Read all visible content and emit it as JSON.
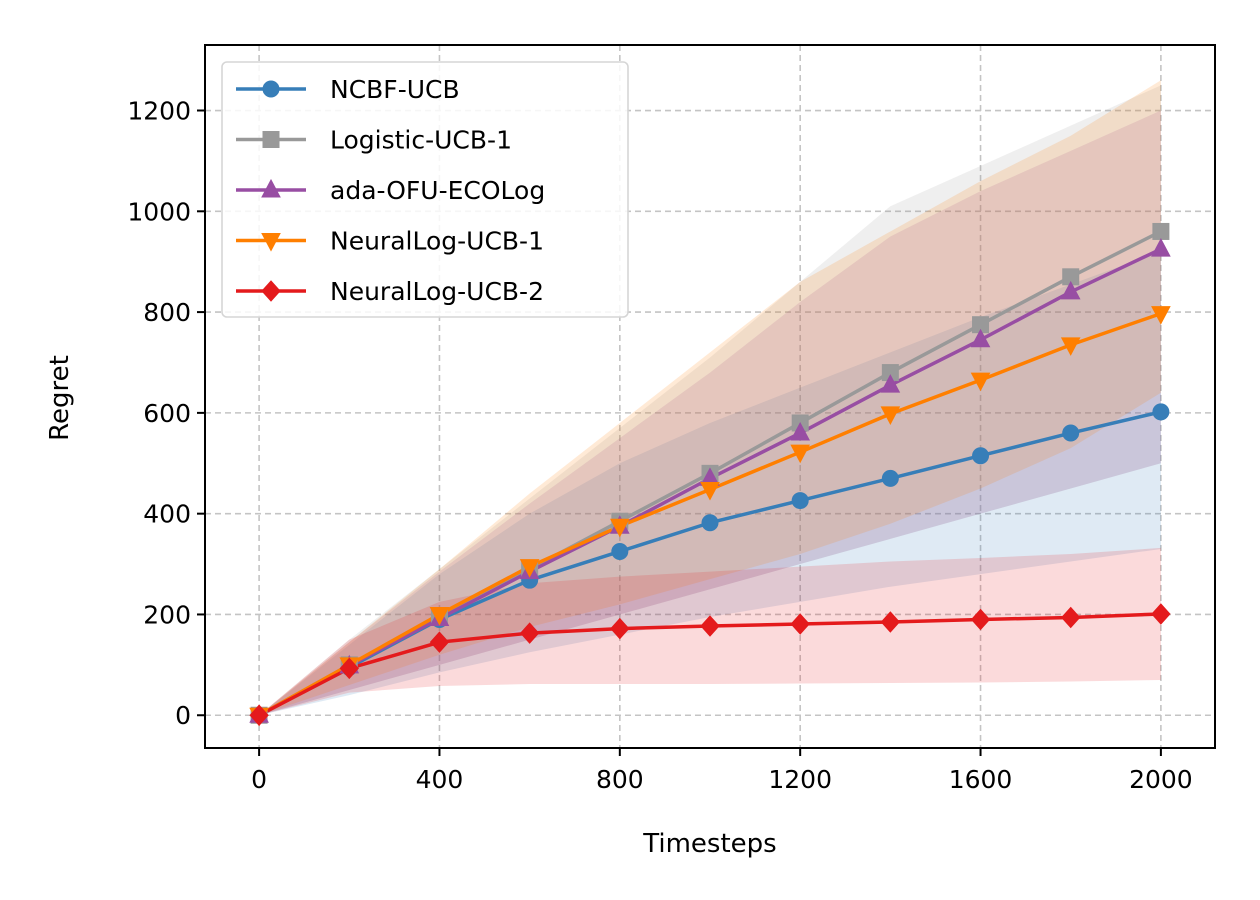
{
  "chart_data": {
    "type": "line",
    "title": "",
    "xlabel": "Timesteps",
    "ylabel": "Regret",
    "xlim": [
      -120,
      2120
    ],
    "ylim": [
      -65,
      1330
    ],
    "xticks": [
      0,
      400,
      800,
      1200,
      1600,
      2000
    ],
    "yticks": [
      0,
      200,
      400,
      600,
      800,
      1000,
      1200
    ],
    "grid": true,
    "legend_position": "top-left",
    "x": [
      0,
      200,
      400,
      600,
      800,
      1000,
      1200,
      1400,
      1600,
      1800,
      2000
    ],
    "series": [
      {
        "name": "NCBF-UCB",
        "color": "#377eb8",
        "marker": "circle",
        "values": [
          0,
          95,
          190,
          268,
          325,
          382,
          426,
          470,
          515,
          560,
          602
        ],
        "lower": [
          0,
          40,
          85,
          125,
          160,
          195,
          225,
          255,
          280,
          305,
          330
        ],
        "upper": [
          0,
          140,
          280,
          400,
          500,
          580,
          650,
          720,
          790,
          855,
          920
        ]
      },
      {
        "name": "Logistic-UCB-1",
        "color": "#999999",
        "marker": "square",
        "values": [
          0,
          100,
          195,
          290,
          385,
          480,
          580,
          680,
          775,
          870,
          960
        ],
        "lower": [
          0,
          50,
          100,
          150,
          200,
          250,
          300,
          350,
          400,
          450,
          500
        ],
        "upper": [
          0,
          150,
          290,
          430,
          570,
          710,
          860,
          1010,
          1090,
          1170,
          1250
        ]
      },
      {
        "name": "ada-OFU-ECOLog",
        "color": "#984ea3",
        "marker": "triangle-up",
        "values": [
          0,
          98,
          192,
          285,
          375,
          470,
          560,
          655,
          745,
          840,
          925
        ],
        "lower": [
          0,
          50,
          100,
          150,
          200,
          250,
          300,
          350,
          400,
          450,
          500
        ],
        "upper": [
          0,
          145,
          285,
          420,
          550,
          680,
          820,
          950,
          1040,
          1120,
          1200
        ]
      },
      {
        "name": "NeuralLog-UCB-1",
        "color": "#ff7f00",
        "marker": "triangle-down",
        "values": [
          0,
          100,
          200,
          295,
          375,
          448,
          522,
          598,
          665,
          735,
          797
        ],
        "lower": [
          0,
          60,
          120,
          175,
          220,
          270,
          320,
          380,
          450,
          530,
          640
        ],
        "upper": [
          0,
          145,
          290,
          440,
          580,
          720,
          860,
          960,
          1060,
          1150,
          1260
        ]
      },
      {
        "name": "NeuralLog-UCB-2",
        "color": "#e41a1c",
        "marker": "diamond",
        "values": [
          0,
          93,
          145,
          163,
          172,
          177,
          181,
          185,
          190,
          194,
          201
        ],
        "lower": [
          0,
          45,
          58,
          62,
          62,
          62,
          63,
          64,
          65,
          67,
          70
        ],
        "upper": [
          0,
          150,
          225,
          262,
          275,
          285,
          295,
          305,
          312,
          320,
          332
        ]
      }
    ]
  }
}
